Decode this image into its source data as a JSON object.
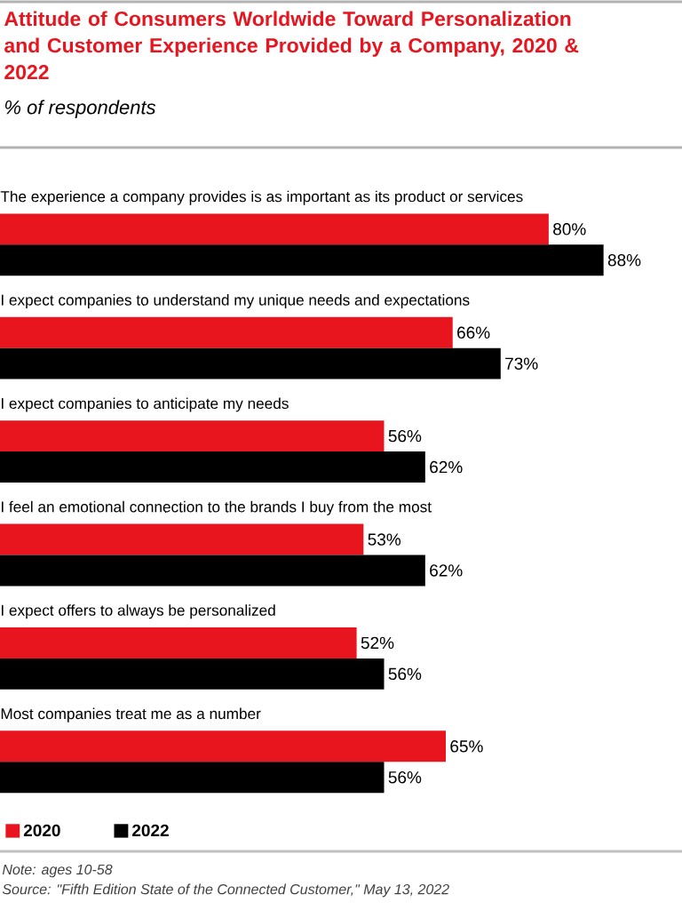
{
  "chart_data": {
    "type": "bar",
    "orientation": "horizontal",
    "title": "Attitude of Consumers Worldwide Toward Personalization and Customer Experience Provided by a Company, 2020 & 2022",
    "subtitle": "% of respondents",
    "categories": [
      "The experience a company provides is as important as its product or services",
      "I expect companies to understand my unique needs and expectations",
      "I expect companies to anticipate my needs",
      "I feel an emotional connection to the brands I buy from the most",
      "I expect offers to always be personalized",
      "Most companies treat me as a number"
    ],
    "series": [
      {
        "name": "2020",
        "color": "#e8141e",
        "values": [
          80,
          66,
          56,
          53,
          52,
          65
        ],
        "value_labels": [
          "80%",
          "66%",
          "56%",
          "53%",
          "52%",
          "65%"
        ]
      },
      {
        "name": "2022",
        "color": "#000000",
        "values": [
          88,
          73,
          62,
          62,
          56,
          56
        ],
        "value_labels": [
          "88%",
          "73%",
          "62%",
          "62%",
          "56%",
          "56%"
        ]
      }
    ],
    "legend": "bottom left",
    "annotations": [
      "Note: ages 10-58",
      "Source: \"Fifth Edition State of the Connected Customer,\" May 13, 2022"
    ]
  }
}
